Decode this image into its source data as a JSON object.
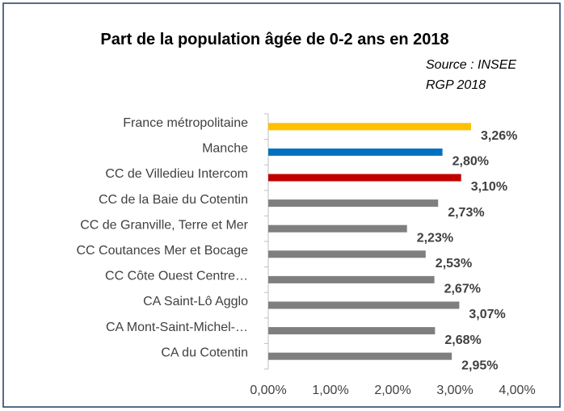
{
  "chart_data": {
    "type": "barh",
    "title": "Part de la population âgée de 0-2 ans en 2018",
    "annotation": "Source : INSEE RGP 2018",
    "categories": [
      "France métropolitaine",
      "Manche",
      "CC de Villedieu Intercom",
      "CC de la Baie du Cotentin",
      "CC de Granville, Terre et Mer",
      "CC Coutances Mer et Bocage",
      "CC Côte Ouest Centre…",
      "CA Saint-Lô Agglo",
      "CA Mont-Saint-Michel-…",
      "CA du Cotentin"
    ],
    "values": [
      3.26,
      2.8,
      3.1,
      2.73,
      2.23,
      2.53,
      2.67,
      3.07,
      2.68,
      2.95
    ],
    "value_labels": [
      "3,26%",
      "2,80%",
      "3,10%",
      "2,73%",
      "2,23%",
      "2,53%",
      "2,67%",
      "3,07%",
      "2,68%",
      "2,95%"
    ],
    "colors": [
      "#ffc000",
      "#0070c0",
      "#c00000",
      "#7f7f7f",
      "#7f7f7f",
      "#7f7f7f",
      "#7f7f7f",
      "#7f7f7f",
      "#7f7f7f",
      "#7f7f7f"
    ],
    "xlim": [
      0,
      4
    ],
    "xticks": [
      {
        "value": 0,
        "label": "0,00%"
      },
      {
        "value": 1,
        "label": "1,00%"
      },
      {
        "value": 2,
        "label": "2,00%"
      },
      {
        "value": 3,
        "label": "3,00%"
      },
      {
        "value": 4,
        "label": "4,00%"
      }
    ],
    "grid": false
  }
}
